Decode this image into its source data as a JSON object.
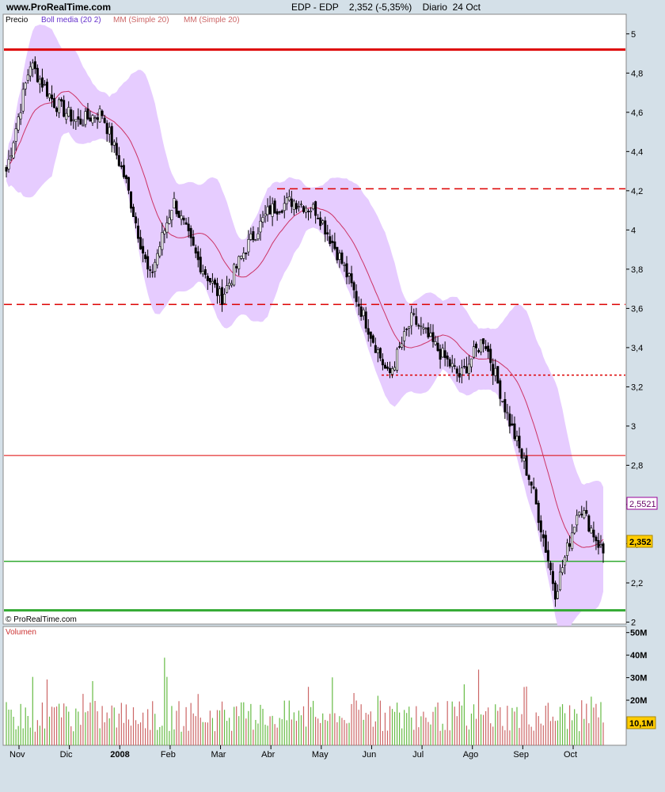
{
  "header": {
    "site": "www.ProRealTime.com",
    "title": "EDP - EDP    2,352 (-5,35%)    Diario  24 Oct"
  },
  "price_panel": {
    "legend": {
      "price": "Precio",
      "boll": "Boll media (20 2)",
      "mm1": "MM (Simple 20)",
      "mm2": "MM (Simple 20)"
    },
    "copyright": "© ProRealTime.com",
    "y_ticks": [
      "5",
      "4,8",
      "4,6",
      "4,4",
      "4,2",
      "4",
      "3,8",
      "3,6",
      "3,4",
      "3,2",
      "3",
      "2,8",
      "2,6",
      "2,4",
      "2,2",
      "2"
    ],
    "tag_ma": "2,5521",
    "tag_last": "2,352"
  },
  "volume_panel": {
    "label": "Volumen",
    "y_ticks": [
      "50M",
      "40M",
      "30M",
      "20M"
    ],
    "tag_last": "10,1M"
  },
  "x_axis": {
    "labels": [
      "Nov",
      "Dic",
      "2008",
      "Feb",
      "Mar",
      "Abr",
      "May",
      "Jun",
      "Jul",
      "Ago",
      "Sep",
      "Oct"
    ]
  },
  "colors": {
    "up_candle": "#ffffff",
    "down_candle": "#000000",
    "band_fill": "#e6ccff",
    "ma_line": "#cc3366",
    "red_line": "#dd0000",
    "green_line": "#33aa33",
    "vol_up": "#66bb44",
    "vol_down": "#cc6666",
    "tag_ma_border": "#990099",
    "tag_last_bg": "#ffcc00"
  },
  "chart_data": {
    "type": "candlestick",
    "y_range": [
      2.0,
      5.1
    ],
    "volume_range_M": [
      0,
      52
    ],
    "x_months": [
      "Nov",
      "Dic",
      "2008",
      "Feb",
      "Mar",
      "Abr",
      "May",
      "Jun",
      "Jul",
      "Ago",
      "Sep",
      "Oct"
    ],
    "anchors": [
      {
        "t": "Nov",
        "c": 4.3
      },
      {
        "t": "Nov",
        "c": 4.85
      },
      {
        "t": "Dic",
        "c": 4.65
      },
      {
        "t": "Dic",
        "c": 4.55
      },
      {
        "t": "2008",
        "c": 4.6
      },
      {
        "t": "2008",
        "c": 4.25
      },
      {
        "t": "Feb",
        "c": 3.75
      },
      {
        "t": "Feb",
        "c": 4.15
      },
      {
        "t": "Mar",
        "c": 3.85
      },
      {
        "t": "Mar",
        "c": 3.65
      },
      {
        "t": "Abr",
        "c": 3.9
      },
      {
        "t": "Abr",
        "c": 4.1
      },
      {
        "t": "May",
        "c": 4.15
      },
      {
        "t": "May",
        "c": 4.1
      },
      {
        "t": "Jun",
        "c": 3.85
      },
      {
        "t": "Jun",
        "c": 3.55
      },
      {
        "t": "Jul",
        "c": 3.25
      },
      {
        "t": "Jul",
        "c": 3.55
      },
      {
        "t": "Ago",
        "c": 3.4
      },
      {
        "t": "Ago",
        "c": 3.25
      },
      {
        "t": "Sep",
        "c": 3.45
      },
      {
        "t": "Sep",
        "c": 3.05
      },
      {
        "t": "Oct",
        "c": 2.7
      },
      {
        "t": "Oct",
        "c": 2.15
      },
      {
        "t": "Oct",
        "c": 2.6
      },
      {
        "t": "Oct",
        "c": 2.352
      }
    ],
    "last_close": 2.352,
    "ma20_last": 2.5521,
    "last_volume_M": 10.1,
    "horizontal_levels": [
      {
        "value": 4.92,
        "style": "solid",
        "color": "red",
        "width": "thick"
      },
      {
        "value": 4.21,
        "style": "dashed",
        "color": "red"
      },
      {
        "value": 3.62,
        "style": "dashed",
        "color": "red"
      },
      {
        "value": 3.26,
        "style": "dotted",
        "color": "red"
      },
      {
        "value": 2.85,
        "style": "solid",
        "color": "red",
        "width": "thin"
      },
      {
        "value": 2.31,
        "style": "solid",
        "color": "green"
      },
      {
        "value": 2.06,
        "style": "solid",
        "color": "green",
        "width": "thick"
      }
    ]
  }
}
